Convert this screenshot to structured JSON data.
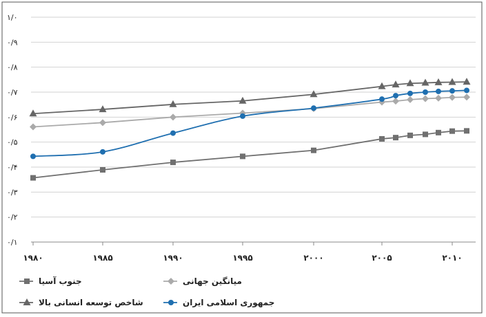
{
  "chart_data": {
    "type": "line",
    "title": "",
    "xlabel": "",
    "ylabel": "",
    "x": [
      1980,
      1985,
      1990,
      1995,
      2000,
      2005,
      2006,
      2007,
      2008,
      2009,
      2010,
      2011
    ],
    "x_ticks": [
      1980,
      1985,
      1990,
      1995,
      2000,
      2005,
      2010
    ],
    "x_tick_labels": [
      "۱۹۸۰",
      "۱۹۸۵",
      "۱۹۹۰",
      "۱۹۹۵",
      "۲۰۰۰",
      "۲۰۰۵",
      "۲۰۱۰"
    ],
    "y_ticks": [
      0.1,
      0.2,
      0.3,
      0.4,
      0.5,
      0.6,
      0.7,
      0.8,
      0.9,
      1.0
    ],
    "y_tick_labels": [
      "۰/۱",
      "۰/۲",
      "۰/۳",
      "۰/۴",
      "۰/۵",
      "۰/۶",
      "۰/۷",
      "۰/۸",
      "۰/۹",
      "۱/۰"
    ],
    "xlim": [
      1979.8,
      1981.5
    ],
    "ylim": [
      0.1,
      1.0
    ],
    "grid": "horizontal",
    "legend_position": "bottom",
    "series": [
      {
        "name": "جنوب آسیا",
        "color": "#707070",
        "marker": "square",
        "x": [
          1980,
          1985,
          1990,
          1995,
          2000,
          2005,
          2006,
          2007,
          2008,
          2009,
          2010,
          2011
        ],
        "values": [
          0.357,
          0.389,
          0.419,
          0.443,
          0.467,
          0.513,
          0.518,
          0.527,
          0.531,
          0.538,
          0.544,
          0.545
        ]
      },
      {
        "name": "میانگین جهانی",
        "color": "#aaaaaa",
        "marker": "diamond",
        "x": [
          1980,
          1985,
          1990,
          1995,
          2000,
          2005,
          2006,
          2007,
          2008,
          2009,
          2010,
          2011
        ],
        "values": [
          0.561,
          0.578,
          0.6,
          0.616,
          0.634,
          0.66,
          0.664,
          0.67,
          0.674,
          0.676,
          0.679,
          0.68
        ]
      },
      {
        "name": "شاخص توسعه انسانی بالا",
        "color": "#666666",
        "marker": "triangle",
        "x": [
          1980,
          1985,
          1990,
          1995,
          2000,
          2005,
          2006,
          2007,
          2008,
          2009,
          2010,
          2011
        ],
        "values": [
          0.614,
          0.631,
          0.651,
          0.665,
          0.691,
          0.723,
          0.73,
          0.735,
          0.737,
          0.739,
          0.74,
          0.741
        ]
      },
      {
        "name": "جمهوری اسلامی ایران",
        "color": "#1f6fb0",
        "marker": "circle",
        "x": [
          1980,
          1985,
          1990,
          1995,
          2000,
          2005,
          2006,
          2007,
          2008,
          2009,
          2010,
          2011
        ],
        "values": [
          0.443,
          0.461,
          0.536,
          0.604,
          0.636,
          0.672,
          0.686,
          0.695,
          0.7,
          0.703,
          0.705,
          0.707
        ]
      }
    ]
  }
}
